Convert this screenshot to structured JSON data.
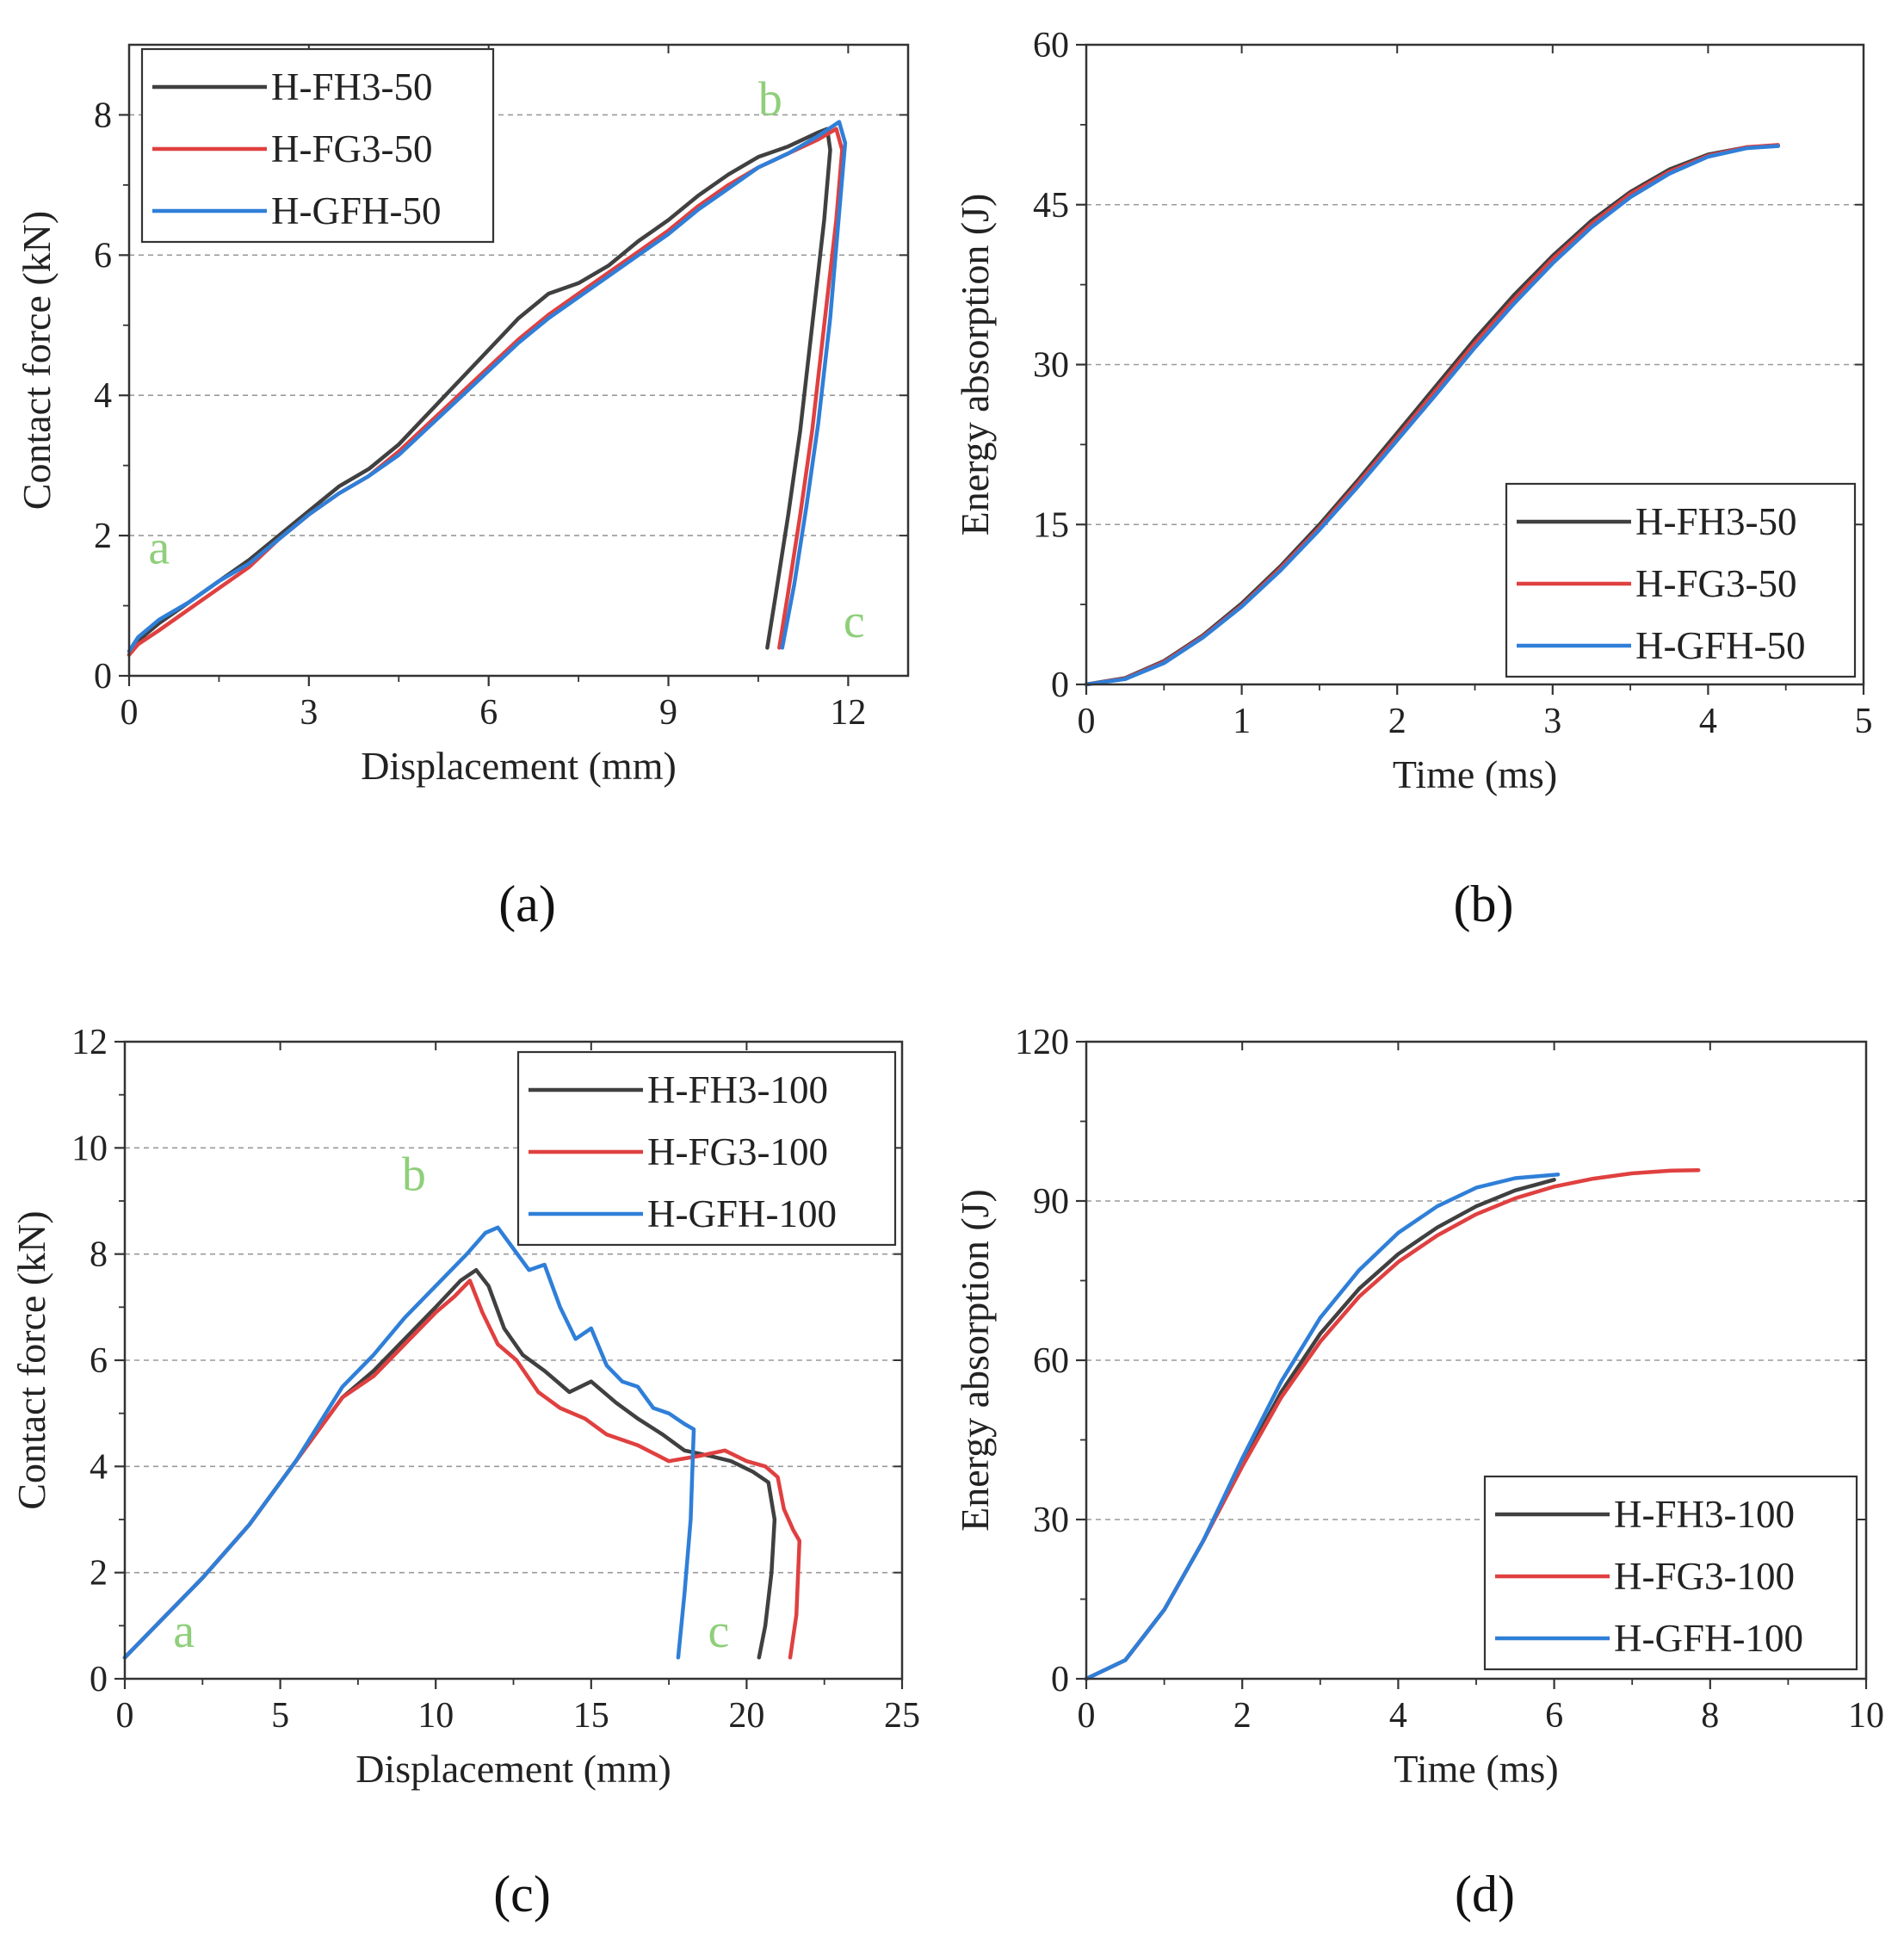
{
  "colors": {
    "FH3": "#404040",
    "FG3": "#e04040",
    "GFH": "#2f7fd8",
    "annotation": "#8fcf7a",
    "grid": "#9a9a9a"
  },
  "chart_data": [
    {
      "id": "a",
      "panel_label": "(a)",
      "type": "line",
      "xlabel": "Displacement (mm)",
      "ylabel": "Contact force (kN)",
      "xlim": [
        0,
        13
      ],
      "ylim": [
        0,
        9
      ],
      "xticks": [
        "0",
        "3",
        "6",
        "9",
        "12"
      ],
      "xtick_values": [
        0,
        3,
        6,
        9,
        12
      ],
      "yticks": [
        "0",
        "2",
        "4",
        "6",
        "8"
      ],
      "ytick_values": [
        0,
        2,
        4,
        6,
        8
      ],
      "grid_y": [
        2,
        4,
        6,
        8
      ],
      "legend_position": "top-left",
      "annotations": [
        {
          "text": "a",
          "x": 0.5,
          "y": 1.6
        },
        {
          "text": "b",
          "x": 10.7,
          "y": 8.0
        },
        {
          "text": "c",
          "x": 12.1,
          "y": 0.55
        }
      ],
      "series": [
        {
          "name": "H-FH3-50",
          "color_key": "FH3",
          "x": [
            0,
            0.15,
            0.5,
            1,
            1.5,
            2,
            2.5,
            3,
            3.5,
            4,
            4.5,
            5,
            5.5,
            6,
            6.5,
            7,
            7.5,
            8,
            8.5,
            9,
            9.5,
            10,
            10.5,
            11,
            11.5,
            11.65,
            11.7,
            11.6,
            11.4,
            11.2,
            11.0,
            10.8,
            10.65
          ],
          "y": [
            0.3,
            0.5,
            0.75,
            1.05,
            1.35,
            1.65,
            2.0,
            2.35,
            2.7,
            2.95,
            3.3,
            3.75,
            4.2,
            4.65,
            5.1,
            5.45,
            5.6,
            5.85,
            6.2,
            6.5,
            6.85,
            7.15,
            7.4,
            7.55,
            7.75,
            7.8,
            7.5,
            6.5,
            5.0,
            3.5,
            2.3,
            1.2,
            0.4
          ]
        },
        {
          "name": "H-FG3-50",
          "color_key": "FG3",
          "x": [
            0,
            0.15,
            0.5,
            1,
            1.5,
            2,
            2.5,
            3,
            3.5,
            4,
            4.5,
            5,
            5.5,
            6,
            6.5,
            7,
            7.5,
            8,
            8.5,
            9,
            9.5,
            10,
            10.5,
            11,
            11.5,
            11.8,
            11.9,
            11.8,
            11.6,
            11.4,
            11.2,
            11.0,
            10.85
          ],
          "y": [
            0.3,
            0.45,
            0.65,
            0.95,
            1.25,
            1.55,
            1.95,
            2.3,
            2.6,
            2.85,
            3.2,
            3.6,
            4.0,
            4.4,
            4.8,
            5.15,
            5.45,
            5.75,
            6.05,
            6.35,
            6.7,
            7.0,
            7.25,
            7.45,
            7.65,
            7.8,
            7.5,
            6.5,
            5.0,
            3.5,
            2.3,
            1.2,
            0.4
          ]
        },
        {
          "name": "H-GFH-50",
          "color_key": "GFH",
          "x": [
            0,
            0.15,
            0.5,
            1,
            1.5,
            2,
            2.5,
            3,
            3.5,
            4,
            4.5,
            5,
            5.5,
            6,
            6.5,
            7,
            7.5,
            8,
            8.5,
            9,
            9.5,
            10,
            10.5,
            11,
            11.5,
            11.85,
            11.95,
            11.85,
            11.7,
            11.5,
            11.3,
            11.1,
            10.9
          ],
          "y": [
            0.35,
            0.55,
            0.8,
            1.05,
            1.35,
            1.6,
            1.95,
            2.3,
            2.6,
            2.85,
            3.15,
            3.55,
            3.95,
            4.35,
            4.75,
            5.1,
            5.4,
            5.7,
            6.0,
            6.3,
            6.65,
            6.95,
            7.25,
            7.45,
            7.7,
            7.9,
            7.6,
            6.6,
            5.1,
            3.6,
            2.4,
            1.3,
            0.4
          ]
        }
      ]
    },
    {
      "id": "b",
      "panel_label": "(b)",
      "type": "line",
      "xlabel": "Time (ms)",
      "ylabel": "Energy absorption (J)",
      "xlim": [
        0,
        5
      ],
      "ylim": [
        0,
        60
      ],
      "xticks": [
        "0",
        "1",
        "2",
        "3",
        "4",
        "5"
      ],
      "xtick_values": [
        0,
        1,
        2,
        3,
        4,
        5
      ],
      "yticks": [
        "0",
        "15",
        "30",
        "45",
        "60"
      ],
      "ytick_values": [
        0,
        15,
        30,
        45,
        60
      ],
      "grid_y": [
        15,
        30,
        45
      ],
      "legend_position": "bottom-right",
      "annotations": [],
      "series": [
        {
          "name": "H-FH3-50",
          "color_key": "FH3",
          "x": [
            0,
            0.25,
            0.5,
            0.75,
            1,
            1.25,
            1.5,
            1.75,
            2,
            2.25,
            2.5,
            2.75,
            3,
            3.25,
            3.5,
            3.75,
            4,
            4.25,
            4.45
          ],
          "y": [
            0,
            0.6,
            2.2,
            4.6,
            7.6,
            11.1,
            15.0,
            19.2,
            23.6,
            28.0,
            32.4,
            36.5,
            40.2,
            43.5,
            46.2,
            48.3,
            49.7,
            50.4,
            50.5
          ]
        },
        {
          "name": "H-FG3-50",
          "color_key": "FG3",
          "x": [
            0,
            0.25,
            0.5,
            0.75,
            1,
            1.25,
            1.5,
            1.75,
            2,
            2.25,
            2.5,
            2.75,
            3,
            3.25,
            3.5,
            3.75,
            4,
            4.25,
            4.45
          ],
          "y": [
            0,
            0.55,
            2.1,
            4.5,
            7.4,
            10.9,
            14.7,
            18.9,
            23.2,
            27.6,
            32.0,
            36.1,
            39.9,
            43.2,
            46.0,
            48.1,
            49.6,
            50.4,
            50.6
          ]
        },
        {
          "name": "H-GFH-50",
          "color_key": "GFH",
          "x": [
            0,
            0.25,
            0.5,
            0.75,
            1,
            1.25,
            1.5,
            1.75,
            2,
            2.25,
            2.5,
            2.75,
            3,
            3.25,
            3.5,
            3.75,
            4,
            4.25,
            4.45
          ],
          "y": [
            0,
            0.5,
            2.0,
            4.4,
            7.3,
            10.7,
            14.5,
            18.6,
            22.9,
            27.2,
            31.6,
            35.7,
            39.5,
            42.9,
            45.7,
            47.9,
            49.5,
            50.3,
            50.5
          ]
        }
      ]
    },
    {
      "id": "c",
      "panel_label": "(c)",
      "type": "line",
      "xlabel": "Displacement (mm)",
      "ylabel": "Contact force (kN)",
      "xlim": [
        0,
        25
      ],
      "ylim": [
        0,
        12
      ],
      "xticks": [
        "0",
        "5",
        "10",
        "15",
        "20",
        "25"
      ],
      "xtick_values": [
        0,
        5,
        10,
        15,
        20,
        25
      ],
      "yticks": [
        "0",
        "2",
        "4",
        "6",
        "8",
        "10",
        "12"
      ],
      "ytick_values": [
        0,
        2,
        4,
        6,
        8,
        10,
        12
      ],
      "grid_y": [
        2,
        4,
        6,
        8,
        10
      ],
      "legend_position": "top-right",
      "annotations": [
        {
          "text": "a",
          "x": 1.9,
          "y": 0.6
        },
        {
          "text": "b",
          "x": 9.3,
          "y": 9.2
        },
        {
          "text": "c",
          "x": 19.1,
          "y": 0.6
        }
      ],
      "series": [
        {
          "name": "H-FH3-100",
          "color_key": "FH3",
          "x": [
            0,
            1,
            2.5,
            4,
            5.5,
            7,
            8,
            9,
            10,
            10.8,
            11.3,
            11.7,
            12.2,
            12.8,
            13.5,
            14.3,
            15.0,
            15.8,
            16.5,
            17.3,
            18.0,
            18.8,
            19.5,
            20.2,
            20.7,
            20.9,
            20.8,
            20.6,
            20.4
          ],
          "y": [
            0.4,
            1.0,
            1.9,
            2.9,
            4.1,
            5.3,
            5.8,
            6.4,
            7.0,
            7.5,
            7.7,
            7.4,
            6.6,
            6.1,
            5.8,
            5.4,
            5.6,
            5.2,
            4.9,
            4.6,
            4.3,
            4.2,
            4.1,
            3.9,
            3.7,
            3.0,
            2.0,
            1.0,
            0.4
          ]
        },
        {
          "name": "H-FG3-100",
          "color_key": "FG3",
          "x": [
            0,
            1,
            2.5,
            4,
            5.5,
            7,
            8,
            9,
            10,
            10.6,
            11.1,
            11.5,
            12.0,
            12.6,
            13.3,
            14.0,
            14.8,
            15.5,
            16.5,
            17.5,
            18.5,
            19.3,
            20.0,
            20.6,
            21.0,
            21.2,
            21.5,
            21.7,
            21.6,
            21.4
          ],
          "y": [
            0.4,
            1.0,
            1.9,
            2.9,
            4.1,
            5.3,
            5.7,
            6.3,
            6.9,
            7.2,
            7.5,
            6.9,
            6.3,
            6.0,
            5.4,
            5.1,
            4.9,
            4.6,
            4.4,
            4.1,
            4.2,
            4.3,
            4.1,
            4.0,
            3.8,
            3.2,
            2.8,
            2.6,
            1.2,
            0.4
          ]
        },
        {
          "name": "H-GFH-100",
          "color_key": "GFH",
          "x": [
            0,
            1,
            2.5,
            4,
            5.5,
            7,
            8,
            9,
            10,
            11,
            11.6,
            12.0,
            12.5,
            13.0,
            13.5,
            14.0,
            14.5,
            15.0,
            15.5,
            16.0,
            16.5,
            17.0,
            17.5,
            18.0,
            18.3,
            18.2,
            18.0,
            17.8
          ],
          "y": [
            0.4,
            1.0,
            1.9,
            2.9,
            4.1,
            5.5,
            6.1,
            6.8,
            7.4,
            8.0,
            8.4,
            8.5,
            8.1,
            7.7,
            7.8,
            7.0,
            6.4,
            6.6,
            5.9,
            5.6,
            5.5,
            5.1,
            5.0,
            4.8,
            4.7,
            3.0,
            1.6,
            0.4
          ]
        }
      ]
    },
    {
      "id": "d",
      "panel_label": "(d)",
      "type": "line",
      "xlabel": "Time (ms)",
      "ylabel": "Energy absorption (J)",
      "xlim": [
        0,
        10
      ],
      "ylim": [
        0,
        120
      ],
      "xticks": [
        "0",
        "2",
        "4",
        "6",
        "8",
        "10"
      ],
      "xtick_values": [
        0,
        2,
        4,
        6,
        8,
        10
      ],
      "yticks": [
        "0",
        "30",
        "60",
        "90",
        "120"
      ],
      "ytick_values": [
        0,
        30,
        60,
        90,
        120
      ],
      "grid_y": [
        30,
        60,
        90
      ],
      "legend_position": "bottom-right",
      "annotations": [],
      "series": [
        {
          "name": "H-FH3-100",
          "color_key": "FH3",
          "x": [
            0,
            0.5,
            1,
            1.5,
            2,
            2.5,
            3,
            3.5,
            4,
            4.5,
            5,
            5.5,
            6
          ],
          "y": [
            0,
            3.5,
            13,
            26,
            40.5,
            54,
            65,
            73.5,
            80,
            85,
            89,
            92,
            94
          ]
        },
        {
          "name": "H-FG3-100",
          "color_key": "FG3",
          "x": [
            0,
            0.5,
            1,
            1.5,
            2,
            2.5,
            3,
            3.5,
            4,
            4.5,
            5,
            5.5,
            6,
            6.5,
            7,
            7.5,
            7.85
          ],
          "y": [
            0,
            3.5,
            13,
            26,
            40,
            53,
            63.5,
            72,
            78.5,
            83.5,
            87.5,
            90.5,
            92.7,
            94.2,
            95.2,
            95.7,
            95.8
          ]
        },
        {
          "name": "H-GFH-100",
          "color_key": "GFH",
          "x": [
            0,
            0.5,
            1,
            1.5,
            2,
            2.5,
            3,
            3.5,
            4,
            4.5,
            5,
            5.5,
            6.05
          ],
          "y": [
            0,
            3.5,
            13,
            26,
            41.5,
            56,
            68,
            77,
            84,
            89,
            92.5,
            94.3,
            95
          ]
        }
      ]
    }
  ]
}
